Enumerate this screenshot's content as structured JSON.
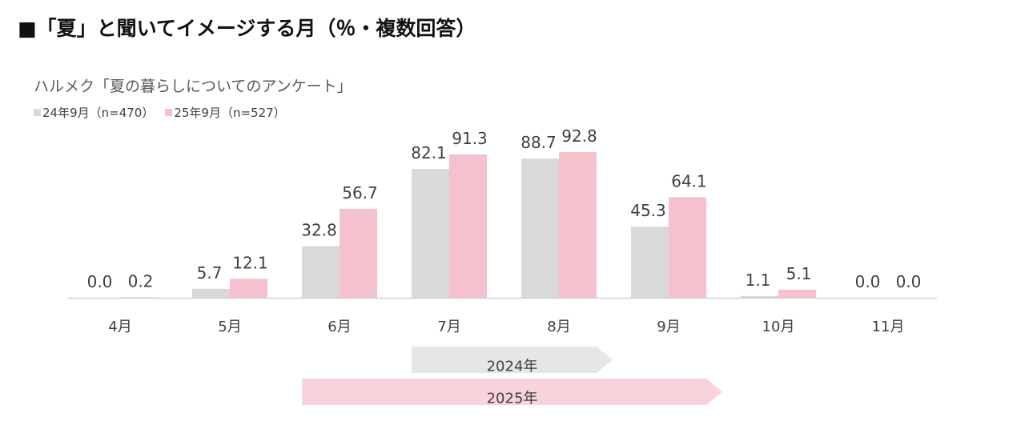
{
  "title": "■「夏」と聞いてイメージする月（％・複数回答）",
  "subtitle": "ハルメク「夏の暮らしについてのアンケート」",
  "legend": [
    {
      "label": "24年9月（n=470）",
      "color": "#d9d9d9"
    },
    {
      "label": "25年9月（n=527）",
      "color": "#f4c1cc"
    }
  ],
  "chart_data": {
    "type": "bar",
    "categories": [
      "4月",
      "5月",
      "6月",
      "7月",
      "8月",
      "9月",
      "10月",
      "11月"
    ],
    "series": [
      {
        "name": "24年9月（n=470）",
        "color": "#d9d9d9",
        "values": [
          0.0,
          5.7,
          32.8,
          82.1,
          88.7,
          45.3,
          1.1,
          0.0
        ]
      },
      {
        "name": "25年9月（n=527）",
        "color": "#f4c1cc",
        "values": [
          0.2,
          12.1,
          56.7,
          91.3,
          92.8,
          64.1,
          5.1,
          0.0
        ]
      }
    ],
    "ylim": [
      0,
      100
    ],
    "periods": [
      {
        "label": "2024年",
        "start": "7月",
        "end": "8月",
        "color": "#e6e6e6"
      },
      {
        "label": "2025年",
        "start": "6月",
        "end": "9月",
        "color": "#f8d3dc"
      }
    ]
  }
}
